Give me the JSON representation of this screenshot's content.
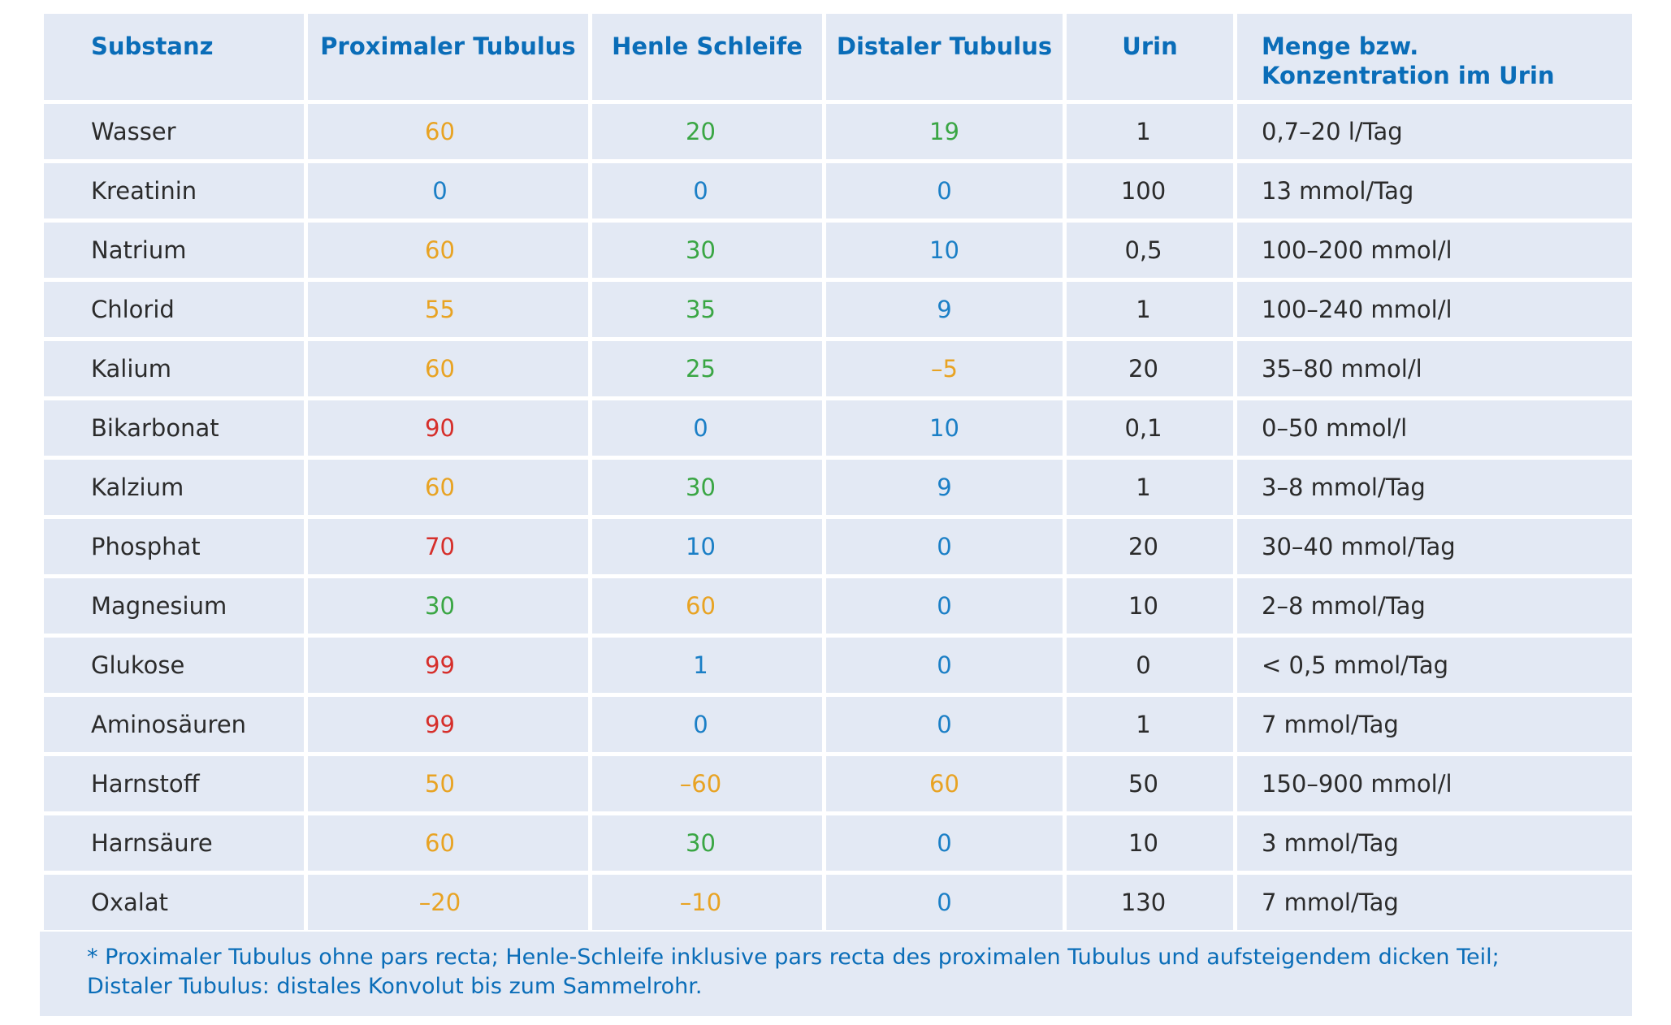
{
  "table": {
    "headers": [
      "Substanz",
      "Proximaler Tubulus",
      "Henle Schleife",
      "Distaler Tubulus",
      "Urin",
      "Menge bzw. Konzentration im Urin"
    ],
    "colors": {
      "header_text": "#0a6db8",
      "orange": "#e8a323",
      "green": "#3aa644",
      "blue": "#1b7fc6",
      "red": "#d62f2b",
      "cell_background": "#e3e9f4"
    },
    "rows": [
      {
        "substanz": "Wasser",
        "proximal": "60",
        "proximal_color": "orange",
        "henle": "20",
        "henle_color": "green",
        "distal": "19",
        "distal_color": "green",
        "urin": "1",
        "menge": "0,7–20 l/Tag"
      },
      {
        "substanz": "Kreatinin",
        "proximal": "0",
        "proximal_color": "blue",
        "henle": "0",
        "henle_color": "blue",
        "distal": "0",
        "distal_color": "blue",
        "urin": "100",
        "menge": "13 mmol/Tag"
      },
      {
        "substanz": "Natrium",
        "proximal": "60",
        "proximal_color": "orange",
        "henle": "30",
        "henle_color": "green",
        "distal": "10",
        "distal_color": "blue",
        "urin": "0,5",
        "menge": "100–200 mmol/l"
      },
      {
        "substanz": "Chlorid",
        "proximal": "55",
        "proximal_color": "orange",
        "henle": "35",
        "henle_color": "green",
        "distal": "9",
        "distal_color": "blue",
        "urin": "1",
        "menge": "100–240 mmol/l"
      },
      {
        "substanz": "Kalium",
        "proximal": "60",
        "proximal_color": "orange",
        "henle": "25",
        "henle_color": "green",
        "distal": "–5",
        "distal_color": "orange",
        "urin": "20",
        "menge": "35–80 mmol/l"
      },
      {
        "substanz": "Bikarbonat",
        "proximal": "90",
        "proximal_color": "red",
        "henle": "0",
        "henle_color": "blue",
        "distal": "10",
        "distal_color": "blue",
        "urin": "0,1",
        "menge": "0–50 mmol/l"
      },
      {
        "substanz": "Kalzium",
        "proximal": "60",
        "proximal_color": "orange",
        "henle": "30",
        "henle_color": "green",
        "distal": "9",
        "distal_color": "blue",
        "urin": "1",
        "menge": "3–8 mmol/Tag"
      },
      {
        "substanz": "Phosphat",
        "proximal": "70",
        "proximal_color": "red",
        "henle": "10",
        "henle_color": "blue",
        "distal": "0",
        "distal_color": "blue",
        "urin": "20",
        "menge": "30–40 mmol/Tag"
      },
      {
        "substanz": "Magnesium",
        "proximal": "30",
        "proximal_color": "green",
        "henle": "60",
        "henle_color": "orange",
        "distal": "0",
        "distal_color": "blue",
        "urin": "10",
        "menge": "2–8 mmol/Tag"
      },
      {
        "substanz": "Glukose",
        "proximal": "99",
        "proximal_color": "red",
        "henle": "1",
        "henle_color": "blue",
        "distal": "0",
        "distal_color": "blue",
        "urin": "0",
        "menge": "< 0,5 mmol/Tag"
      },
      {
        "substanz": "Aminosäuren",
        "proximal": "99",
        "proximal_color": "red",
        "henle": "0",
        "henle_color": "blue",
        "distal": "0",
        "distal_color": "blue",
        "urin": "1",
        "menge": "7 mmol/Tag"
      },
      {
        "substanz": "Harnstoff",
        "proximal": "50",
        "proximal_color": "orange",
        "henle": "–60",
        "henle_color": "orange",
        "distal": "60",
        "distal_color": "orange",
        "urin": "50",
        "menge": "150–900 mmol/l"
      },
      {
        "substanz": "Harnsäure",
        "proximal": "60",
        "proximal_color": "orange",
        "henle": "30",
        "henle_color": "green",
        "distal": "0",
        "distal_color": "blue",
        "urin": "10",
        "menge": "3 mmol/Tag"
      },
      {
        "substanz": "Oxalat",
        "proximal": "–20",
        "proximal_color": "orange",
        "henle": "–10",
        "henle_color": "orange",
        "distal": "0",
        "distal_color": "blue",
        "urin": "130",
        "menge": "7 mmol/Tag"
      }
    ]
  },
  "footnote": {
    "line1": "* Proximaler Tubulus ohne pars recta; Henle-Schleife inklusive pars recta des proximalen Tubulus und aufsteigendem dicken Teil;",
    "line2": "Distaler Tubulus: distales Konvolut bis zum Sammelrohr."
  }
}
